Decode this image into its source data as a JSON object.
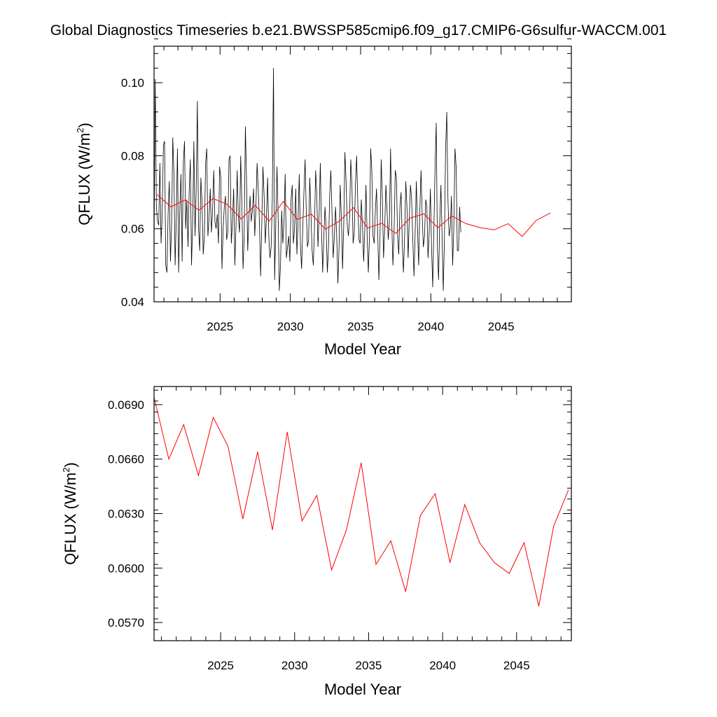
{
  "title": "Global Diagnostics Timeseries b.e21.BWSSP585cmip6.f09_g17.CMIP6-G6sulfur-WACCM.001",
  "chart_data": [
    {
      "type": "line",
      "xlabel": "Model Year",
      "ylabel_main": "QFLUX (W/m",
      "ylabel_sup": "2",
      "ylabel_close": ")",
      "xlim": [
        2020.3,
        2050.0
      ],
      "ylim": [
        0.04,
        0.11
      ],
      "xticks": [
        2025,
        2030,
        2035,
        2040,
        2045
      ],
      "xtick_labels": [
        "2025",
        "2030",
        "2035",
        "2040",
        "2045"
      ],
      "yticks": [
        0.04,
        0.06,
        0.08,
        0.1
      ],
      "ytick_labels": [
        "0.04",
        "0.06",
        "0.08",
        "0.10"
      ],
      "series": [
        {
          "color": "#000000",
          "x_start": 2020.3,
          "x_step": 0.0833333,
          "values": [
            0.055,
            0.101,
            0.066,
            0.062,
            0.061,
            0.078,
            0.056,
            0.064,
            0.083,
            0.084,
            0.05,
            0.048,
            0.064,
            0.073,
            0.051,
            0.061,
            0.085,
            0.075,
            0.05,
            0.063,
            0.082,
            0.048,
            0.065,
            0.075,
            0.051,
            0.078,
            0.084,
            0.06,
            0.068,
            0.055,
            0.07,
            0.079,
            0.05,
            0.062,
            0.084,
            0.058,
            0.071,
            0.095,
            0.06,
            0.054,
            0.074,
            0.067,
            0.053,
            0.058,
            0.078,
            0.082,
            0.058,
            0.063,
            0.071,
            0.059,
            0.065,
            0.076,
            0.062,
            0.06,
            0.064,
            0.056,
            0.077,
            0.074,
            0.049,
            0.06,
            0.066,
            0.069,
            0.057,
            0.059,
            0.079,
            0.08,
            0.056,
            0.062,
            0.071,
            0.05,
            0.061,
            0.076,
            0.063,
            0.059,
            0.08,
            0.067,
            0.049,
            0.058,
            0.088,
            0.073,
            0.054,
            0.063,
            0.069,
            0.062,
            0.065,
            0.071,
            0.058,
            0.066,
            0.078,
            0.071,
            0.062,
            0.047,
            0.061,
            0.077,
            0.069,
            0.056,
            0.063,
            0.074,
            0.058,
            0.052,
            0.055,
            0.068,
            0.104,
            0.046,
            0.062,
            0.077,
            0.063,
            0.043,
            0.05,
            0.065,
            0.056,
            0.062,
            0.075,
            0.052,
            0.055,
            0.058,
            0.051,
            0.068,
            0.072,
            0.056,
            0.06,
            0.071,
            0.053,
            0.062,
            0.075,
            0.056,
            0.049,
            0.06,
            0.07,
            0.079,
            0.065,
            0.055,
            0.057,
            0.074,
            0.064,
            0.054,
            0.05,
            0.06,
            0.076,
            0.069,
            0.055,
            0.064,
            0.078,
            0.06,
            0.048,
            0.058,
            0.066,
            0.06,
            0.048,
            0.055,
            0.069,
            0.076,
            0.064,
            0.052,
            0.058,
            0.066,
            0.058,
            0.045,
            0.055,
            0.072,
            0.063,
            0.049,
            0.061,
            0.081,
            0.073,
            0.061,
            0.058,
            0.063,
            0.079,
            0.072,
            0.056,
            0.059,
            0.072,
            0.08,
            0.067,
            0.057,
            0.056,
            0.068,
            0.061,
            0.051,
            0.06,
            0.072,
            0.058,
            0.048,
            0.058,
            0.082,
            0.076,
            0.058,
            0.056,
            0.065,
            0.071,
            0.059,
            0.046,
            0.058,
            0.079,
            0.068,
            0.052,
            0.06,
            0.072,
            0.065,
            0.057,
            0.062,
            0.082,
            0.062,
            0.05,
            0.059,
            0.076,
            0.074,
            0.058,
            0.053,
            0.066,
            0.07,
            0.056,
            0.048,
            0.058,
            0.073,
            0.066,
            0.052,
            0.063,
            0.072,
            0.068,
            0.057,
            0.047,
            0.059,
            0.073,
            0.06,
            0.05,
            0.065,
            0.076,
            0.064,
            0.055,
            0.058,
            0.068,
            0.066,
            0.052,
            0.059,
            0.071,
            0.055,
            0.044,
            0.06,
            0.077,
            0.089,
            0.055,
            0.046,
            0.062,
            0.072,
            0.058,
            0.043,
            0.057,
            0.082,
            0.092,
            0.068,
            0.058,
            0.06,
            0.069,
            0.05,
            0.06,
            0.082,
            0.077,
            0.054,
            0.054,
            0.066,
            0.059
          ]
        },
        {
          "color": "#ff0000",
          "x": [
            2020.5,
            2021.5,
            2022.5,
            2023.5,
            2024.5,
            2025.5,
            2026.5,
            2027.5,
            2028.5,
            2029.5,
            2030.5,
            2031.5,
            2032.5,
            2033.5,
            2034.5,
            2035.5,
            2036.5,
            2037.5,
            2038.5,
            2039.5,
            2040.5,
            2041.5,
            2042.5,
            2043.5,
            2044.5,
            2045.5,
            2046.5,
            2047.5,
            2048.5
          ],
          "values": [
            0.0694,
            0.066,
            0.0679,
            0.0651,
            0.0683,
            0.0667,
            0.0627,
            0.0664,
            0.0621,
            0.0675,
            0.0626,
            0.064,
            0.0599,
            0.0621,
            0.0658,
            0.0602,
            0.0615,
            0.0587,
            0.0629,
            0.0641,
            0.0603,
            0.0635,
            0.0614,
            0.0603,
            0.0597,
            0.0614,
            0.0579,
            0.0623,
            0.0643
          ]
        }
      ]
    },
    {
      "type": "line",
      "xlabel": "Model Year",
      "ylabel_main": "QFLUX (W/m",
      "ylabel_sup": "2",
      "ylabel_close": ")",
      "xlim": [
        2020.5,
        2048.7
      ],
      "ylim": [
        0.056,
        0.07
      ],
      "xticks": [
        2025,
        2030,
        2035,
        2040,
        2045
      ],
      "xtick_labels": [
        "2025",
        "2030",
        "2035",
        "2040",
        "2045"
      ],
      "yticks": [
        0.057,
        0.06,
        0.063,
        0.066,
        0.069
      ],
      "ytick_labels": [
        "0.0570",
        "0.0600",
        "0.0630",
        "0.0660",
        "0.0690"
      ],
      "series": [
        {
          "color": "#ff0000",
          "x": [
            2020.5,
            2021.5,
            2022.5,
            2023.5,
            2024.5,
            2025.5,
            2026.5,
            2027.5,
            2028.5,
            2029.5,
            2030.5,
            2031.5,
            2032.5,
            2033.5,
            2034.5,
            2035.5,
            2036.5,
            2037.5,
            2038.5,
            2039.5,
            2040.5,
            2041.5,
            2042.5,
            2043.5,
            2044.5,
            2045.5,
            2046.5,
            2047.5,
            2048.5
          ],
          "values": [
            0.0694,
            0.066,
            0.0679,
            0.0651,
            0.0683,
            0.0667,
            0.0627,
            0.0664,
            0.0621,
            0.0675,
            0.0626,
            0.064,
            0.0599,
            0.0621,
            0.0658,
            0.0602,
            0.0615,
            0.0587,
            0.0629,
            0.0641,
            0.0603,
            0.0635,
            0.0614,
            0.0603,
            0.0597,
            0.0614,
            0.0579,
            0.0623,
            0.0643
          ]
        }
      ]
    }
  ]
}
